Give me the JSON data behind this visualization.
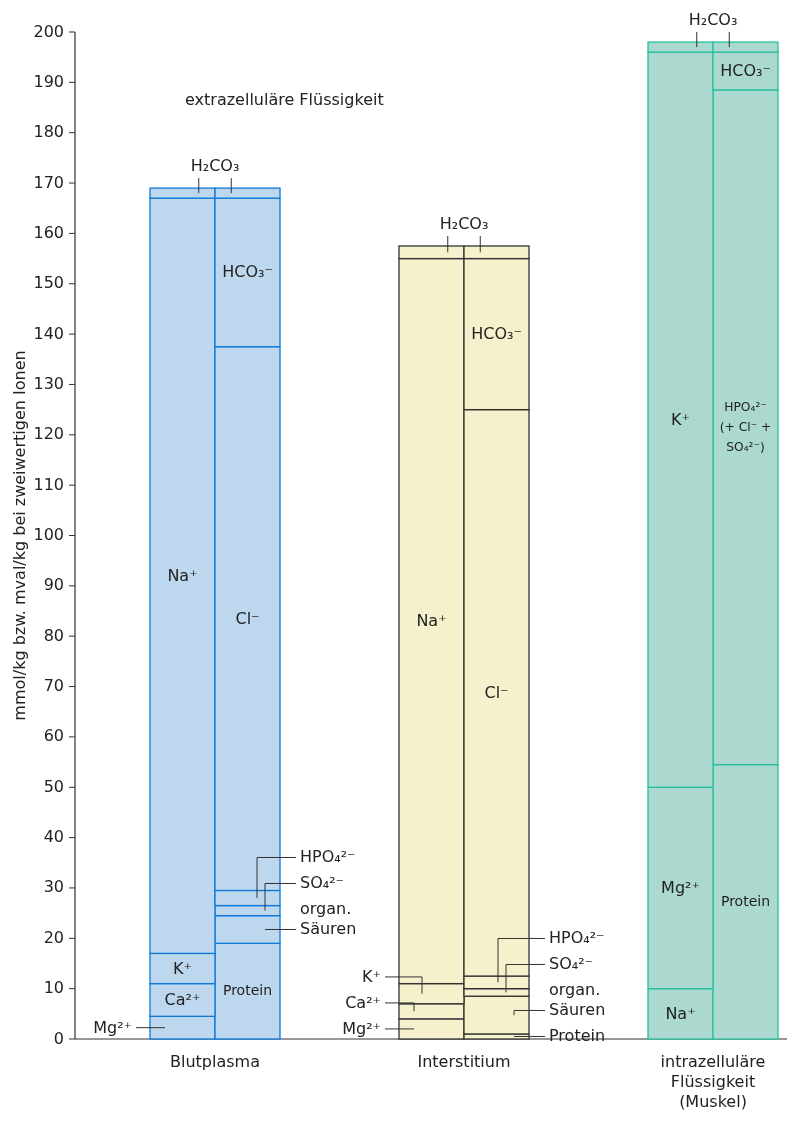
{
  "chart_data": {
    "type": "bar",
    "stacked": true,
    "ylabel": "mmol/kg bzw. mval/kg bei zweiwertigen Ionen",
    "ylim": [
      0,
      200
    ],
    "yticks": [
      0,
      10,
      20,
      30,
      40,
      50,
      60,
      70,
      80,
      90,
      100,
      110,
      120,
      130,
      140,
      150,
      160,
      170,
      180,
      190,
      200
    ],
    "categories": [
      null,
      null,
      null,
      null,
      null,
      null
    ],
    "annotations": [
      "extrazelluläre Flüssigkeit",
      "Blutplasma",
      "Interstitium",
      "intrazelluläre\nFlüssigkeit\n(Muskel)"
    ],
    "series": [
      {
        "values": [
          4.5,
          19,
          4,
          1,
          10,
          54.5
        ],
        "colors": [
          "#bdd7ee",
          "#bdd7ee",
          "#f4f1cc",
          "#f4f1cc",
          "#acd9cf",
          "#acd9cf"
        ],
        "value_labels": [
          "Mg²⁺",
          "Protein",
          "Mg²⁺",
          "Protein",
          "Na⁺",
          "Protein"
        ]
      },
      {
        "values": [
          6.5,
          5.5,
          3,
          7.5,
          40,
          134
        ],
        "colors": [
          "#bdd7ee",
          "#bdd7ee",
          "#f4f1cc",
          "#f4f1cc",
          "#acd9cf",
          "#acd9cf"
        ],
        "value_labels": [
          "Ca²⁺",
          "organ.\nSäuren",
          "Ca²⁺",
          "organ.\nSäuren",
          "Mg²⁺",
          "HPO₄²⁻\n(+ Cl⁻ +\nSO₄²⁻)"
        ]
      },
      {
        "values": [
          6,
          2,
          4,
          1.5,
          146,
          7.5
        ],
        "colors": [
          "#bdd7ee",
          "#bdd7ee",
          "#f4f1cc",
          "#f4f1cc",
          "#acd9cf",
          "#acd9cf"
        ],
        "value_labels": [
          "K⁺",
          "SO₄²⁻",
          "K⁺",
          "SO₄²⁻",
          "K⁺",
          "HCO₃⁻"
        ]
      },
      {
        "values": [
          150,
          3,
          144,
          2.5,
          2,
          2
        ],
        "colors": [
          "#bdd7ee",
          "#bdd7ee",
          "#f4f1cc",
          "#f4f1cc",
          "#acd9cf",
          "#acd9cf"
        ],
        "value_labels": [
          "Na⁺",
          "HPO₄²⁻",
          "Na⁺",
          "HPO₄²⁻",
          "H₂CO₃",
          null
        ]
      },
      {
        "values": [
          2,
          108,
          2.5,
          112.5,
          null,
          null
        ],
        "colors": [
          "#bdd7ee",
          "#bdd7ee",
          "#f4f1cc",
          "#f4f1cc",
          null,
          null
        ],
        "value_labels": [
          "H₂CO₃",
          "Cl⁻",
          "H₂CO₃",
          "Cl⁻",
          null,
          null
        ]
      },
      {
        "values": [
          null,
          29.5,
          null,
          30,
          null,
          null
        ],
        "colors": [
          null,
          "#bdd7ee",
          null,
          "#f4f1cc",
          null,
          null
        ],
        "value_labels": [
          null,
          "HCO₃⁻",
          null,
          "HCO₃⁻",
          null,
          null
        ]
      },
      {
        "values": [
          null,
          2,
          null,
          2.5,
          null,
          null
        ],
        "colors": [
          null,
          "#bdd7ee",
          null,
          "#f4f1cc",
          null,
          null
        ],
        "value_labels": [
          null,
          null,
          null,
          null,
          null,
          null
        ]
      }
    ]
  }
}
